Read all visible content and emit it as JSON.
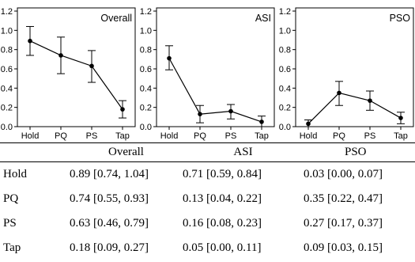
{
  "chart_data": [
    {
      "type": "line",
      "title": "Overall",
      "categories": [
        "Hold",
        "PQ",
        "PS",
        "Tap"
      ],
      "values": [
        0.89,
        0.74,
        0.63,
        0.18
      ],
      "ci_low": [
        0.74,
        0.55,
        0.46,
        0.09
      ],
      "ci_high": [
        1.04,
        0.93,
        0.79,
        0.27
      ],
      "ylim": [
        0,
        1.2
      ],
      "yticks": [
        "0.0",
        "0.2",
        "0.4",
        "0.6",
        "0.8",
        "1.0",
        "1.2"
      ],
      "error_bars": true
    },
    {
      "type": "line",
      "title": "ASI",
      "categories": [
        "Hold",
        "PQ",
        "PS",
        "Tap"
      ],
      "values": [
        0.71,
        0.13,
        0.16,
        0.05
      ],
      "ci_low": [
        0.59,
        0.04,
        0.08,
        0.0
      ],
      "ci_high": [
        0.84,
        0.22,
        0.23,
        0.11
      ],
      "ylim": [
        0,
        1.2
      ],
      "yticks": [
        "0.0",
        "0.2",
        "0.4",
        "0.6",
        "0.8",
        "1.0",
        "1.2"
      ],
      "error_bars": true
    },
    {
      "type": "line",
      "title": "PSO",
      "categories": [
        "Hold",
        "PQ",
        "PS",
        "Tap"
      ],
      "values": [
        0.03,
        0.35,
        0.27,
        0.09
      ],
      "ci_low": [
        0.0,
        0.22,
        0.17,
        0.03
      ],
      "ci_high": [
        0.07,
        0.47,
        0.37,
        0.15
      ],
      "ylim": [
        0,
        1.2
      ],
      "yticks": [
        "0.0",
        "0.2",
        "0.4",
        "0.6",
        "0.8",
        "1.0",
        "1.2"
      ],
      "error_bars": true
    }
  ],
  "table": {
    "headers": [
      "",
      "Overall",
      "ASI",
      "PSO"
    ],
    "rows": [
      {
        "label": "Hold",
        "overall": "0.89 [0.74, 1.04]",
        "asi": "0.71 [0.59, 0.84]",
        "pso": "0.03 [0.00, 0.07]"
      },
      {
        "label": "PQ",
        "overall": "0.74 [0.55, 0.93]",
        "asi": "0.13 [0.04, 0.22]",
        "pso": "0.35 [0.22, 0.47]"
      },
      {
        "label": "PS",
        "overall": "0.63 [0.46, 0.79]",
        "asi": "0.16 [0.08, 0.23]",
        "pso": "0.27 [0.17, 0.37]"
      },
      {
        "label": "Tap",
        "overall": "0.18 [0.09, 0.27]",
        "asi": "0.05 [0.00, 0.11]",
        "pso": "0.09 [0.03, 0.15]"
      }
    ]
  }
}
